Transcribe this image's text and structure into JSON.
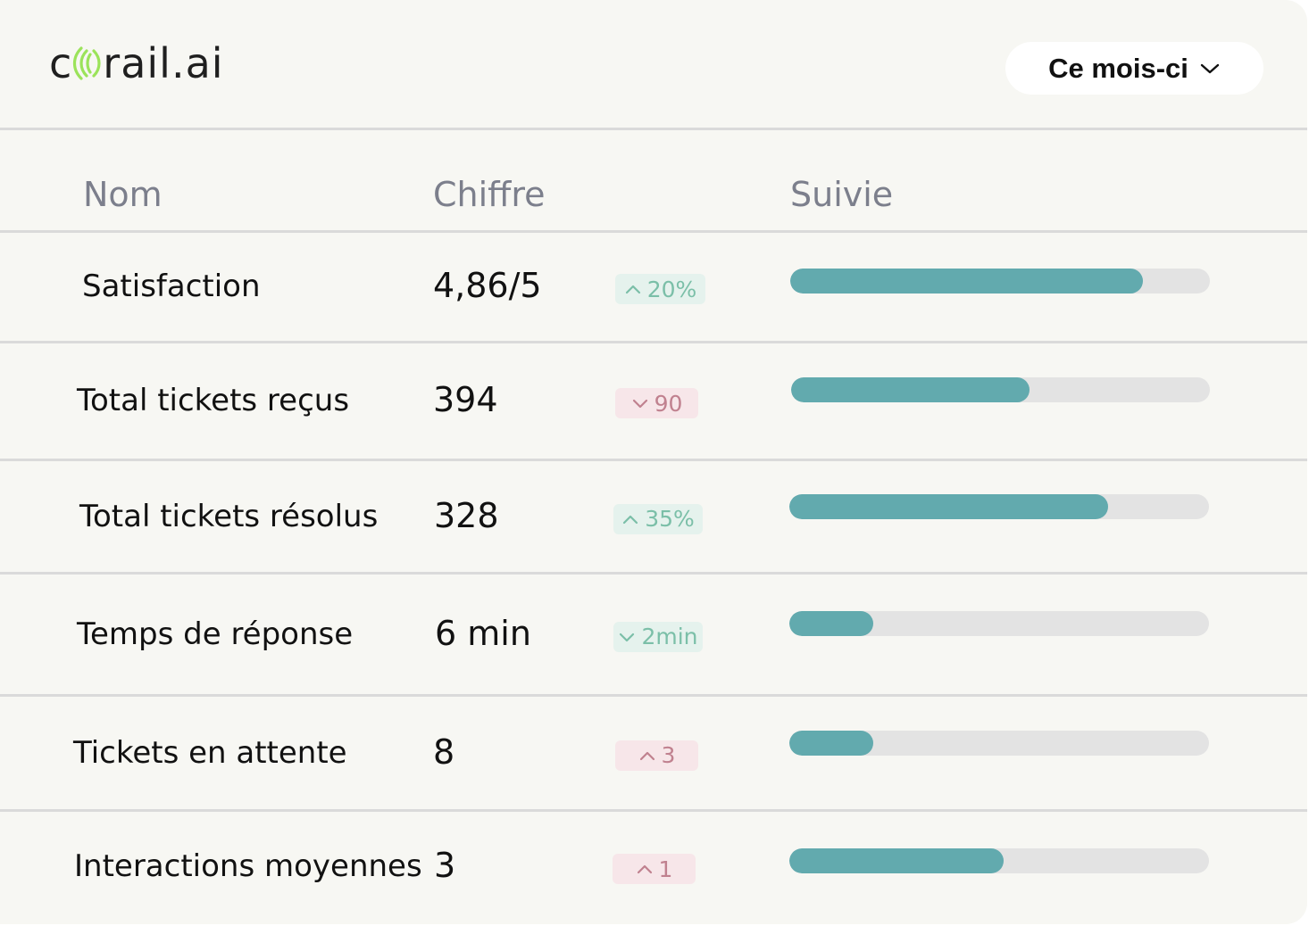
{
  "brand": {
    "logo_prefix": "c",
    "logo_suffix": "rail.ai",
    "logo_mark_color": "#9be35a"
  },
  "period_selector": {
    "label": "Ce mois-ci",
    "icon": "chevron-down-icon"
  },
  "columns": {
    "name": "Nom",
    "value": "Chiffre",
    "tracking": "Suivie"
  },
  "colors": {
    "progress_fill": "#62aaae",
    "progress_track": "#e3e3e3",
    "positive_badge_bg": "#e5f2ed",
    "positive_badge_text": "#7bbfa8",
    "negative_badge_bg": "#f7e6e9",
    "negative_badge_text": "#c0818f"
  },
  "metrics": [
    {
      "name": "Satisfaction",
      "value": "4,86/5",
      "change": "20%",
      "direction": "up",
      "tone": "positive",
      "progress": 0.84
    },
    {
      "name": "Total tickets reçus",
      "value": "394",
      "change": "90",
      "direction": "down",
      "tone": "negative",
      "progress": 0.57
    },
    {
      "name": "Total tickets résolus",
      "value": "328",
      "change": "35%",
      "direction": "up",
      "tone": "positive",
      "progress": 0.76
    },
    {
      "name": "Temps de réponse",
      "value": "6 min",
      "change": "2min",
      "direction": "down",
      "tone": "positive",
      "progress": 0.2
    },
    {
      "name": "Tickets en attente",
      "value": "8",
      "change": "3",
      "direction": "up",
      "tone": "negative",
      "progress": 0.2
    },
    {
      "name": "Interactions moyennes",
      "value": "3",
      "change": "1",
      "direction": "up",
      "tone": "negative",
      "progress": 0.51
    }
  ]
}
